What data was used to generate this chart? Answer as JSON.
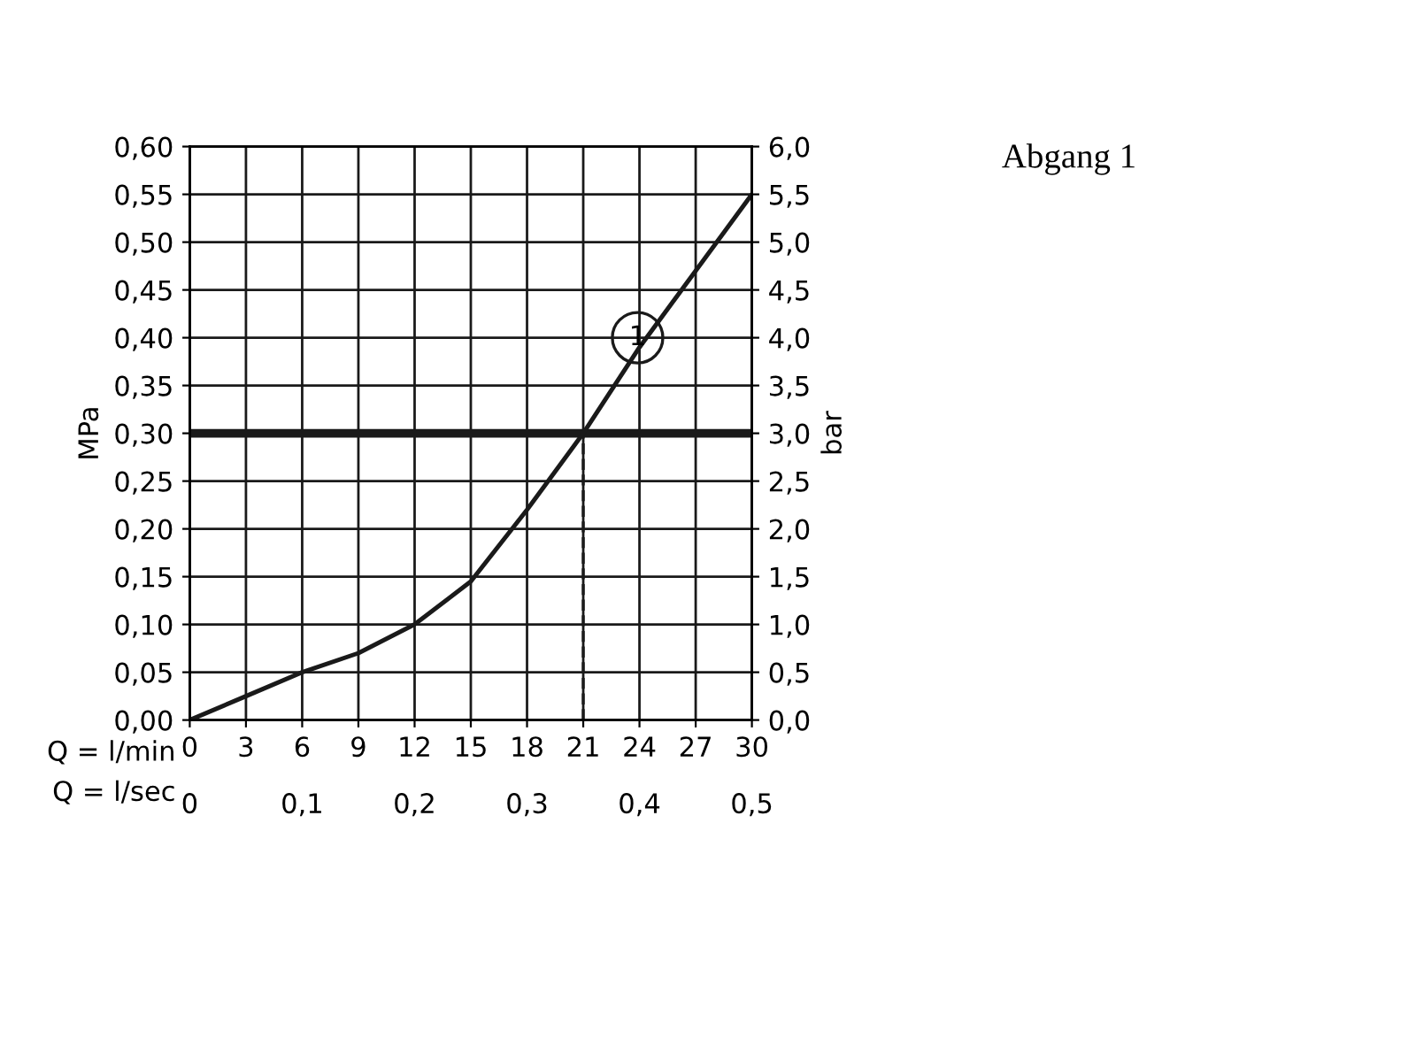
{
  "chart_data": {
    "type": "line",
    "title": "Abgang 1",
    "xlabel": "Q = l/min",
    "x2label": "Q = l/sec",
    "ylabel": "MPa",
    "y2label": "bar",
    "x": [
      0,
      3,
      6,
      9,
      12,
      15,
      18,
      21,
      24,
      27,
      30
    ],
    "series": [
      {
        "color": "#1a1a1a",
        "values": [
          0,
          0.025,
          0.05,
          0.07,
          0.1,
          0.145,
          0.22,
          0.3,
          0.39,
          0.47,
          0.55
        ]
      }
    ],
    "xlim": [
      0,
      30
    ],
    "xticks": [
      0,
      3,
      6,
      9,
      12,
      15,
      18,
      21,
      24,
      27,
      30
    ],
    "x2lim": [
      0,
      0.5
    ],
    "x2ticks": [
      0,
      {
        "value": 0.1,
        "label": "0,1"
      },
      {
        "value": 0.2,
        "label": "0,2"
      },
      {
        "value": 0.3,
        "label": "0,3"
      },
      {
        "value": 0.4,
        "label": "0,4"
      },
      {
        "value": 0.5,
        "label": "0,5"
      }
    ],
    "ylim": [
      0,
      0.6
    ],
    "yticks": [
      {
        "value": 0,
        "label": "0,00"
      },
      {
        "value": 0.05,
        "label": "0,05"
      },
      {
        "value": 0.1,
        "label": "0,10"
      },
      {
        "value": 0.15,
        "label": "0,15"
      },
      {
        "value": 0.2,
        "label": "0,20"
      },
      {
        "value": 0.25,
        "label": "0,25"
      },
      {
        "value": 0.3,
        "label": "0,30"
      },
      {
        "value": 0.35,
        "label": "0,35"
      },
      {
        "value": 0.4,
        "label": "0,40"
      },
      {
        "value": 0.45,
        "label": "0,45"
      },
      {
        "value": 0.5,
        "label": "0,50"
      },
      {
        "value": 0.55,
        "label": "0,55"
      },
      {
        "value": 0.6,
        "label": "0,60"
      }
    ],
    "y2lim": [
      0,
      6
    ],
    "y2ticks": [
      {
        "value": 0,
        "label": "0,0"
      },
      {
        "value": 0.5,
        "label": "0,5"
      },
      {
        "value": 1,
        "label": "1,0"
      },
      {
        "value": 1.5,
        "label": "1,5"
      },
      {
        "value": 2,
        "label": "2,0"
      },
      {
        "value": 2.5,
        "label": "2,5"
      },
      {
        "value": 3,
        "label": "3,0"
      },
      {
        "value": 3.5,
        "label": "3,5"
      },
      {
        "value": 4,
        "label": "4,0"
      },
      {
        "value": 4.5,
        "label": "4,5"
      },
      {
        "value": 5,
        "label": "5,0"
      },
      {
        "value": 5.5,
        "label": "5,5"
      },
      {
        "value": 6,
        "label": "6,0"
      }
    ],
    "ref_lines": [
      {
        "axis": "y",
        "value": 0.3,
        "color": "#1a1a1a",
        "line_style": "solid"
      },
      {
        "axis": "x",
        "value": 21,
        "color": "#1a1a1a",
        "line_style": "dashed"
      }
    ],
    "annotations": [
      {
        "text": "1",
        "x": 23.9,
        "y": 0.4
      }
    ],
    "grid": true,
    "marker": "none",
    "line_style": "solid"
  }
}
